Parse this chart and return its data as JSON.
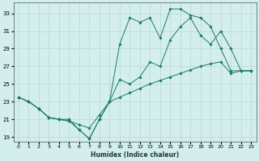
{
  "title": "",
  "xlabel": "Humidex (Indice chaleur)",
  "ylabel": "",
  "background_color": "#d4eeed",
  "grid_color": "#b8d8d6",
  "line_color": "#1a7a6e",
  "xlim": [
    -0.5,
    23.5
  ],
  "ylim": [
    18.5,
    34.2
  ],
  "yticks": [
    19,
    21,
    23,
    25,
    27,
    29,
    31,
    33
  ],
  "xticks": [
    0,
    1,
    2,
    3,
    4,
    5,
    6,
    7,
    8,
    9,
    10,
    11,
    12,
    13,
    14,
    15,
    16,
    17,
    18,
    19,
    20,
    21,
    22,
    23
  ],
  "line1_x": [
    0,
    1,
    2,
    3,
    4,
    5,
    6,
    7,
    8,
    9,
    10,
    11,
    12,
    13,
    14,
    15,
    16,
    17,
    18,
    19,
    20,
    21,
    22,
    23
  ],
  "line1_y": [
    23.5,
    23.0,
    22.2,
    21.2,
    21.0,
    20.8,
    20.4,
    20.0,
    21.5,
    23.0,
    23.5,
    24.0,
    24.5,
    25.0,
    25.4,
    25.8,
    26.2,
    26.6,
    27.0,
    27.3,
    27.5,
    26.2,
    26.5,
    26.5
  ],
  "line2_x": [
    0,
    1,
    2,
    3,
    4,
    5,
    6,
    7,
    8,
    9,
    10,
    11,
    12,
    13,
    14,
    15,
    16,
    17,
    18,
    19,
    20,
    21,
    22,
    23
  ],
  "line2_y": [
    23.5,
    23.0,
    22.2,
    21.2,
    21.0,
    21.0,
    19.8,
    18.8,
    21.0,
    23.0,
    29.5,
    32.5,
    32.0,
    32.5,
    30.2,
    33.5,
    33.5,
    32.8,
    32.5,
    31.5,
    29.0,
    26.5,
    26.5,
    26.5
  ],
  "line3_x": [
    0,
    1,
    2,
    3,
    4,
    5,
    6,
    7,
    8,
    9,
    10,
    11,
    12,
    13,
    14,
    15,
    16,
    17,
    18,
    19,
    20,
    21,
    22,
    23
  ],
  "line3_y": [
    23.5,
    23.0,
    22.2,
    21.2,
    21.0,
    20.8,
    19.8,
    18.8,
    21.0,
    23.0,
    25.5,
    25.0,
    25.8,
    27.5,
    27.0,
    30.0,
    31.5,
    32.5,
    30.5,
    29.5,
    31.0,
    29.0,
    26.5,
    26.5
  ]
}
